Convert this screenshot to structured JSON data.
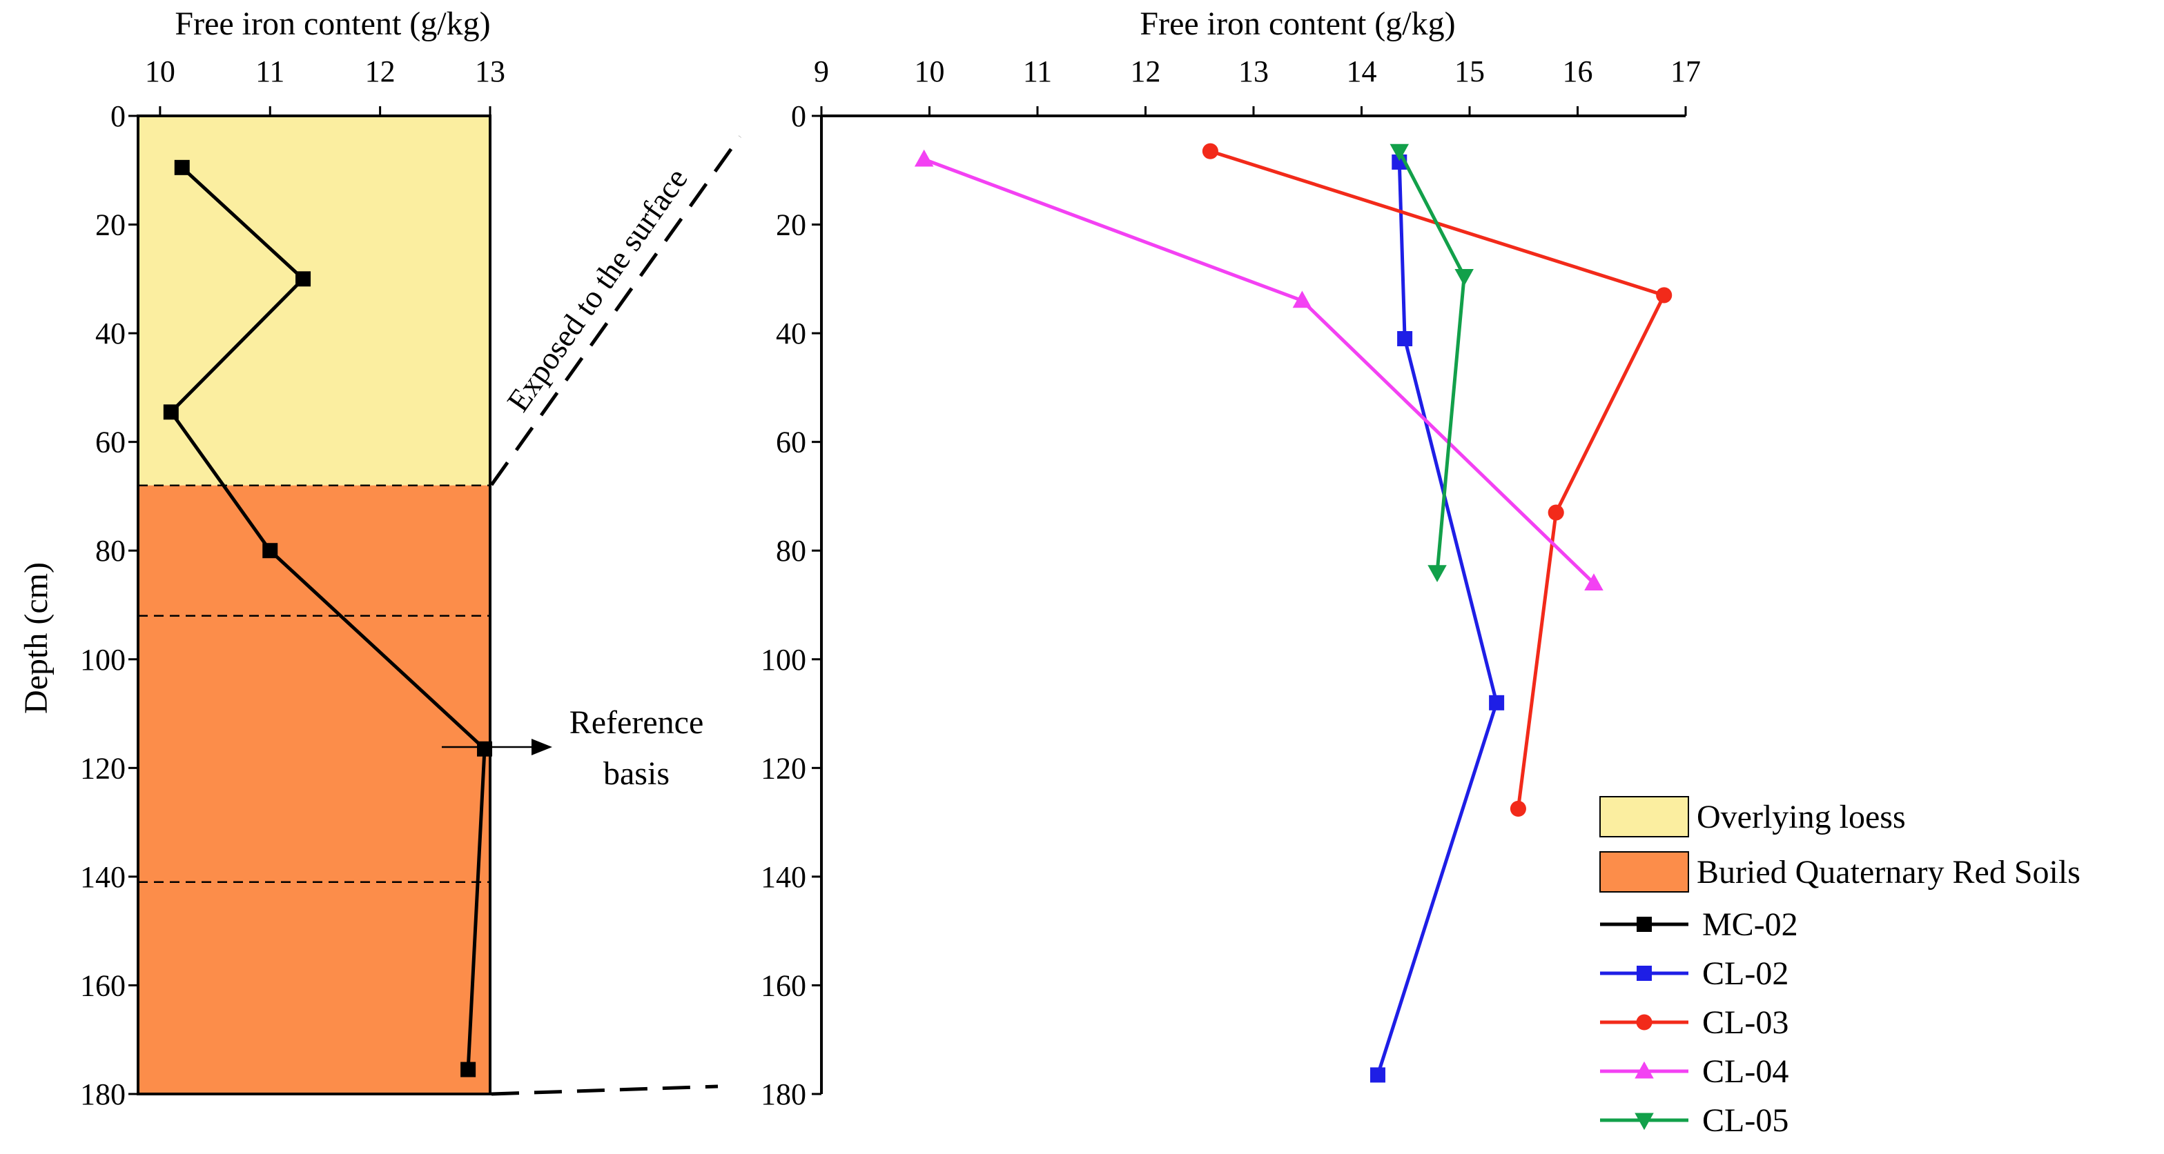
{
  "chart_data": [
    {
      "type": "line",
      "title": "",
      "xlabel": "Free iron content (g/kg)",
      "ylabel": "Depth (cm)",
      "xlim": [
        9.8,
        13
      ],
      "ylim": [
        0,
        180
      ],
      "x_ticks": [
        10,
        11,
        12,
        13
      ],
      "y_ticks": [
        0,
        20,
        40,
        60,
        80,
        100,
        120,
        140,
        160,
        180
      ],
      "bands": [
        {
          "name": "Overlying loess",
          "from": 0,
          "to": 68,
          "color": "#FBEEA0"
        },
        {
          "name": "Buried Quaternary Red Soils",
          "from": 68,
          "to": 180,
          "color": "#FC8D4A"
        }
      ],
      "dashed_lines": [
        68,
        92,
        141
      ],
      "series": [
        {
          "name": "MC-02",
          "color": "#000000",
          "marker": "square",
          "points": [
            {
              "x": 10.2,
              "y": 9.5
            },
            {
              "x": 11.3,
              "y": 30
            },
            {
              "x": 10.1,
              "y": 54.5
            },
            {
              "x": 11.0,
              "y": 80
            },
            {
              "x": 12.95,
              "y": 116.5
            },
            {
              "x": 12.8,
              "y": 175.5
            }
          ]
        }
      ],
      "annotations": {
        "reference": {
          "line1": "Reference",
          "line2": "basis",
          "x": 12.95,
          "y": 116.5
        },
        "exposed": "Exposed to the surface"
      }
    },
    {
      "type": "line",
      "title": "",
      "xlabel": "Free iron content (g/kg)",
      "ylabel": "",
      "xlim": [
        9,
        17
      ],
      "ylim": [
        0,
        180
      ],
      "x_ticks": [
        9,
        10,
        11,
        12,
        13,
        14,
        15,
        16,
        17
      ],
      "y_ticks": [
        0,
        20,
        40,
        60,
        80,
        100,
        120,
        140,
        160,
        180
      ],
      "series": [
        {
          "name": "CL-02",
          "color": "#1E1EE6",
          "marker": "square",
          "points": [
            {
              "x": 14.35,
              "y": 8.5
            },
            {
              "x": 14.4,
              "y": 41
            },
            {
              "x": 15.25,
              "y": 108
            },
            {
              "x": 14.15,
              "y": 176.5
            }
          ]
        },
        {
          "name": "CL-03",
          "color": "#F22A1A",
          "marker": "circle",
          "points": [
            {
              "x": 12.6,
              "y": 6.5
            },
            {
              "x": 16.8,
              "y": 33
            },
            {
              "x": 15.8,
              "y": 73
            },
            {
              "x": 15.45,
              "y": 127.5
            }
          ]
        },
        {
          "name": "CL-04",
          "color": "#F341F3",
          "marker": "triangle-up",
          "points": [
            {
              "x": 9.95,
              "y": 8
            },
            {
              "x": 13.45,
              "y": 34
            },
            {
              "x": 16.15,
              "y": 86
            }
          ]
        },
        {
          "name": "CL-05",
          "color": "#12A04A",
          "marker": "triangle-down",
          "points": [
            {
              "x": 14.35,
              "y": 6.5
            },
            {
              "x": 14.95,
              "y": 29.5
            },
            {
              "x": 14.7,
              "y": 84
            }
          ]
        }
      ]
    }
  ],
  "legend": {
    "placement": "bottom-right",
    "patches": [
      {
        "label": "Overlying loess",
        "color": "#FBEEA0"
      },
      {
        "label": "Buried Quaternary Red Soils",
        "color": "#FC8D4A"
      }
    ],
    "lines": [
      {
        "label": "MC-02",
        "color": "#000000",
        "marker": "square"
      },
      {
        "label": "CL-02",
        "color": "#1E1EE6",
        "marker": "square"
      },
      {
        "label": "CL-03",
        "color": "#F22A1A",
        "marker": "circle"
      },
      {
        "label": "CL-04",
        "color": "#F341F3",
        "marker": "triangle-up"
      },
      {
        "label": "CL-05",
        "color": "#12A04A",
        "marker": "triangle-down"
      }
    ]
  }
}
